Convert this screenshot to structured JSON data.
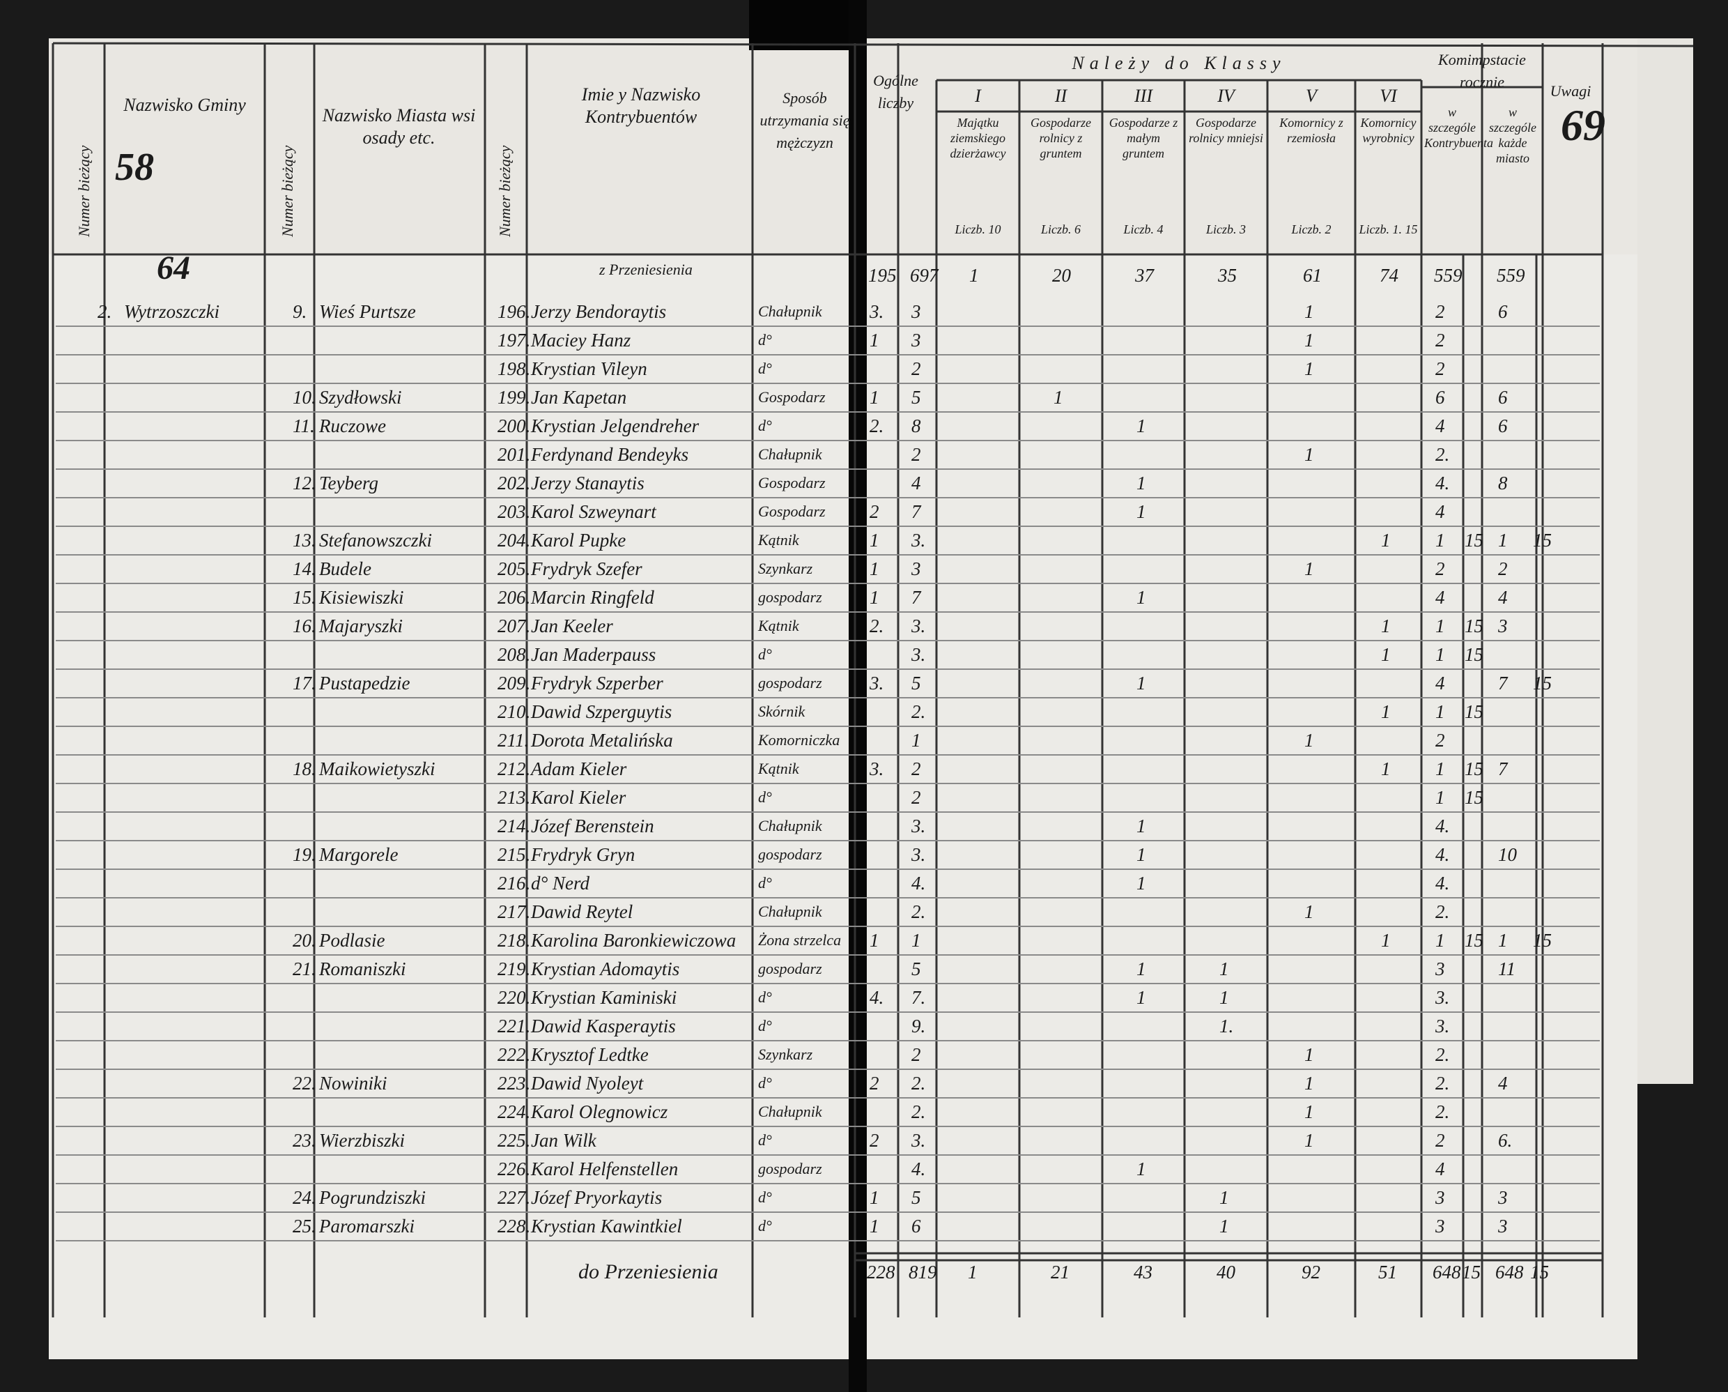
{
  "header": {
    "page_number": "69",
    "gmina_total": "58",
    "carried_number": "64",
    "columns": [
      "Numer bieżący",
      "Nazwisko Gminy",
      "Numer bieżący",
      "Nazwisko Miasta wsi osady etc.",
      "Numer bieżący",
      "Imie y Nazwisko Kontrybuentów",
      "Sposób utrzymania się mężczyzn",
      "Ogólne liczby",
      "Należy do Klassy",
      "Komimpstacie rocznie",
      "Uwagi"
    ],
    "classes": [
      {
        "label": "I",
        "note": "Majątku ziemskiego dzierżawcy",
        "rate": "Liczb. 10"
      },
      {
        "label": "II",
        "note": "Gospodarze rolnicy z gruntem",
        "rate": "Liczb. 6"
      },
      {
        "label": "III",
        "note": "Gospodarze z małym gruntem",
        "rate": "Liczb. 4"
      },
      {
        "label": "IV",
        "note": "Gospodarze rolnicy mniejsi",
        "rate": "Liczb. 3"
      },
      {
        "label": "V",
        "note": "Komornicy z rzemiosła",
        "rate": "Liczb. 2"
      },
      {
        "label": "VI",
        "note": "Komornicy wyrobnicy",
        "rate": "Liczb. 1. 15"
      }
    ],
    "tax_columns": [
      "w szczególe Kontrybuenta",
      "w szczególe każde miasto"
    ]
  },
  "carried": {
    "label": "z Przeniesienia",
    "values": [
      "195",
      "697",
      "1",
      "20",
      "37",
      "35",
      "61",
      "74",
      "559",
      null,
      "559",
      null
    ]
  },
  "gmina": {
    "number": "2.",
    "name": "Wytrzoszczki"
  },
  "rows": [
    [
      "9.",
      "Wieś Purtsze",
      "196.",
      "Jerzy Bendoraytis",
      "Chałupnik",
      "3.",
      "3",
      null,
      null,
      null,
      null,
      "1",
      null,
      "2",
      null,
      "6",
      null
    ],
    [
      null,
      null,
      "197.",
      "Maciey Hanz",
      "d°",
      "1",
      "3",
      null,
      null,
      null,
      null,
      "1",
      null,
      "2",
      null,
      null,
      null
    ],
    [
      null,
      null,
      "198.",
      "Krystian Vileyn",
      "d°",
      null,
      "2",
      null,
      null,
      null,
      null,
      "1",
      null,
      "2",
      null,
      null,
      null
    ],
    [
      "10.",
      "Szydłowski",
      "199.",
      "Jan Kapetan",
      "Gospodarz",
      "1",
      "5",
      null,
      "1",
      null,
      null,
      null,
      null,
      "6",
      null,
      "6",
      null
    ],
    [
      "11.",
      "Ruczowe",
      "200.",
      "Krystian Jelgendreher",
      "d°",
      "2.",
      "8",
      null,
      null,
      "1",
      null,
      null,
      null,
      "4",
      null,
      "6",
      null
    ],
    [
      null,
      null,
      "201.",
      "Ferdynand Bendeyks",
      "Chałupnik",
      null,
      "2",
      null,
      null,
      null,
      null,
      "1",
      null,
      "2.",
      null,
      null,
      null
    ],
    [
      "12.",
      "Teyberg",
      "202.",
      "Jerzy Stanaytis",
      "Gospodarz",
      null,
      "4",
      null,
      null,
      "1",
      null,
      null,
      null,
      "4.",
      null,
      "8",
      null
    ],
    [
      null,
      null,
      "203.",
      "Karol Szweynart",
      "Gospodarz",
      "2",
      "7",
      null,
      null,
      "1",
      null,
      null,
      null,
      "4",
      null,
      null,
      null
    ],
    [
      "13.",
      "Stefanowszczki",
      "204.",
      "Karol Pupke",
      "Kątnik",
      "1",
      "3.",
      null,
      null,
      null,
      null,
      null,
      "1",
      "1",
      "15",
      "1",
      "15"
    ],
    [
      "14.",
      "Budele",
      "205.",
      "Frydryk Szefer",
      "Szynkarz",
      "1",
      "3",
      null,
      null,
      null,
      null,
      "1",
      null,
      "2",
      null,
      "2",
      null
    ],
    [
      "15.",
      "Kisiewiszki",
      "206.",
      "Marcin Ringfeld",
      "gospodarz",
      "1",
      "7",
      null,
      null,
      "1",
      null,
      null,
      null,
      "4",
      null,
      "4",
      null
    ],
    [
      "16.",
      "Majaryszki",
      "207.",
      "Jan Keeler",
      "Kątnik",
      "2.",
      "3.",
      null,
      null,
      null,
      null,
      null,
      "1",
      "1",
      "15",
      "3",
      null
    ],
    [
      null,
      null,
      "208.",
      "Jan Maderpauss",
      "d°",
      null,
      "3.",
      null,
      null,
      null,
      null,
      null,
      "1",
      "1",
      "15",
      null,
      null
    ],
    [
      "17.",
      "Pustapedzie",
      "209.",
      "Frydryk Szperber",
      "gospodarz",
      "3.",
      "5",
      null,
      null,
      "1",
      null,
      null,
      null,
      "4",
      null,
      "7",
      "15"
    ],
    [
      null,
      null,
      "210.",
      "Dawid Szperguytis",
      "Skórnik",
      null,
      "2.",
      null,
      null,
      null,
      null,
      null,
      "1",
      "1",
      "15",
      null,
      null
    ],
    [
      null,
      null,
      "211.",
      "Dorota Metalińska",
      "Komorniczka",
      null,
      "1",
      null,
      null,
      null,
      null,
      "1",
      null,
      "2",
      null,
      null,
      null
    ],
    [
      "18.",
      "Maikowietyszki",
      "212.",
      "Adam Kieler",
      "Kątnik",
      "3.",
      "2",
      null,
      null,
      null,
      null,
      null,
      "1",
      "1",
      "15",
      "7",
      null
    ],
    [
      null,
      null,
      "213.",
      "Karol Kieler",
      "d°",
      null,
      "2",
      null,
      null,
      null,
      null,
      null,
      null,
      "1",
      "15",
      null,
      null
    ],
    [
      null,
      null,
      "214.",
      "Józef Berenstein",
      "Chałupnik",
      null,
      "3.",
      null,
      null,
      "1",
      null,
      null,
      null,
      "4.",
      null,
      null,
      null
    ],
    [
      "19.",
      "Margorele",
      "215.",
      "Frydryk Gryn",
      "gospodarz",
      null,
      "3.",
      null,
      null,
      "1",
      null,
      null,
      null,
      "4.",
      null,
      "10",
      null
    ],
    [
      null,
      null,
      "216.",
      "d° Nerd",
      "d°",
      null,
      "4.",
      null,
      null,
      "1",
      null,
      null,
      null,
      "4.",
      null,
      null,
      null
    ],
    [
      null,
      null,
      "217.",
      "Dawid Reytel",
      "Chałupnik",
      null,
      "2.",
      null,
      null,
      null,
      null,
      "1",
      null,
      "2.",
      null,
      null,
      null
    ],
    [
      "20.",
      "Podlasie",
      "218.",
      "Karolina Baronkiewiczowa",
      "Żona strzelca",
      "1",
      "1",
      null,
      null,
      null,
      null,
      null,
      "1",
      "1",
      "15",
      "1",
      "15"
    ],
    [
      "21.",
      "Romaniszki",
      "219.",
      "Krystian Adomaytis",
      "gospodarz",
      null,
      "5",
      null,
      null,
      "1",
      "1",
      null,
      null,
      "3",
      null,
      "11",
      null
    ],
    [
      null,
      null,
      "220.",
      "Krystian Kaminiski",
      "d°",
      "4.",
      "7.",
      null,
      null,
      "1",
      "1",
      null,
      null,
      "3.",
      null,
      null,
      null
    ],
    [
      null,
      null,
      "221.",
      "Dawid Kasperaytis",
      "d°",
      null,
      "9.",
      null,
      null,
      null,
      "1.",
      null,
      null,
      "3.",
      null,
      null,
      null
    ],
    [
      null,
      null,
      "222.",
      "Krysztof Ledtke",
      "Szynkarz",
      null,
      "2",
      null,
      null,
      null,
      null,
      "1",
      null,
      "2.",
      null,
      null,
      null
    ],
    [
      "22.",
      "Nowiniki",
      "223.",
      "Dawid Nyoleyt",
      "d°",
      "2",
      "2.",
      null,
      null,
      null,
      null,
      "1",
      null,
      "2.",
      null,
      "4",
      null
    ],
    [
      null,
      null,
      "224.",
      "Karol Olegnowicz",
      "Chałupnik",
      null,
      "2.",
      null,
      null,
      null,
      null,
      "1",
      null,
      "2.",
      null,
      null,
      null
    ],
    [
      "23.",
      "Wierzbiszki",
      "225.",
      "Jan Wilk",
      "d°",
      "2",
      "3.",
      null,
      null,
      null,
      null,
      "1",
      null,
      "2",
      null,
      "6.",
      null
    ],
    [
      null,
      null,
      "226.",
      "Karol Helfenstellen",
      "gospodarz",
      null,
      "4.",
      null,
      null,
      "1",
      null,
      null,
      null,
      "4",
      null,
      null,
      null
    ],
    [
      "24.",
      "Pogrundziszki",
      "227.",
      "Józef Pryorkaytis",
      "d°",
      "1",
      "5",
      null,
      null,
      null,
      "1",
      null,
      null,
      "3",
      null,
      "3",
      null
    ],
    [
      "25.",
      "Paromarszki",
      "228.",
      "Krystian Kawintkiel",
      "d°",
      "1",
      "6",
      null,
      null,
      null,
      "1",
      null,
      null,
      "3",
      null,
      "3",
      null
    ]
  ],
  "total": {
    "label": "do Przeniesienia",
    "values": [
      "228",
      "819",
      "1",
      "21",
      "43",
      "40",
      "92",
      "51",
      "648",
      "15",
      "648",
      "15"
    ]
  }
}
